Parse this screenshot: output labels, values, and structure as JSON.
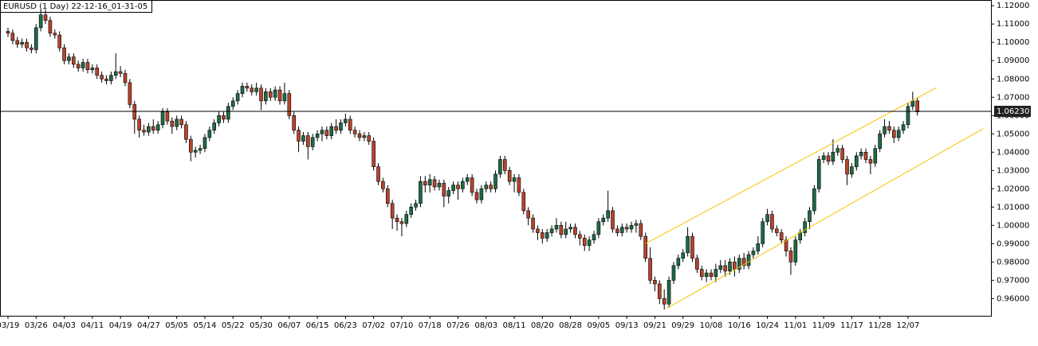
{
  "chart_data": {
    "type": "candlestick",
    "title": "EURUSD (1 Day) 22-12-16_01-31-05",
    "categories": [
      "03/19",
      null,
      null,
      null,
      null,
      null,
      "03/26",
      null,
      null,
      null,
      null,
      null,
      "04/03",
      null,
      null,
      null,
      null,
      null,
      "04/11",
      null,
      null,
      null,
      null,
      null,
      "04/19",
      null,
      null,
      null,
      null,
      null,
      "04/27",
      null,
      null,
      null,
      null,
      null,
      "05/05",
      null,
      null,
      null,
      null,
      null,
      "05/14",
      null,
      null,
      null,
      null,
      null,
      "05/22",
      null,
      null,
      null,
      null,
      null,
      "05/30",
      null,
      null,
      null,
      null,
      null,
      "06/07",
      null,
      null,
      null,
      null,
      null,
      "06/15",
      null,
      null,
      null,
      null,
      null,
      "06/23",
      null,
      null,
      null,
      null,
      null,
      "07/02",
      null,
      null,
      null,
      null,
      null,
      "07/10",
      null,
      null,
      null,
      null,
      null,
      "07/18",
      null,
      null,
      null,
      null,
      null,
      "07/26",
      null,
      null,
      null,
      null,
      null,
      "08/03",
      null,
      null,
      null,
      null,
      null,
      "08/11",
      null,
      null,
      null,
      null,
      null,
      "08/20",
      null,
      null,
      null,
      null,
      null,
      "08/28",
      null,
      null,
      null,
      null,
      null,
      "09/05",
      null,
      null,
      null,
      null,
      null,
      "09/13",
      null,
      null,
      null,
      null,
      null,
      "09/21",
      null,
      null,
      null,
      null,
      null,
      "09/29",
      null,
      null,
      null,
      null,
      null,
      "10/08",
      null,
      null,
      null,
      null,
      null,
      "10/16",
      null,
      null,
      null,
      null,
      null,
      "10/24",
      null,
      null,
      null,
      null,
      null,
      "11/01",
      null,
      null,
      null,
      null,
      null,
      "11/09",
      null,
      null,
      null,
      null,
      null,
      "11/17",
      null,
      null,
      null,
      null,
      null,
      "11/28",
      null,
      null,
      null,
      null,
      null,
      "12/07",
      null,
      null
    ],
    "ohlc": [
      [
        1.106,
        1.108,
        1.103,
        1.105
      ],
      [
        1.105,
        1.107,
        1.099,
        1.101
      ],
      [
        1.101,
        1.103,
        1.097,
        1.099
      ],
      [
        1.099,
        1.102,
        1.097,
        1.1
      ],
      [
        1.1,
        1.102,
        1.095,
        1.097
      ],
      [
        1.097,
        1.099,
        1.094,
        1.096
      ],
      [
        1.096,
        1.11,
        1.094,
        1.108
      ],
      [
        1.108,
        1.118,
        1.106,
        1.115
      ],
      [
        1.115,
        1.118,
        1.11,
        1.112
      ],
      [
        1.112,
        1.114,
        1.103,
        1.105
      ],
      [
        1.105,
        1.107,
        1.102,
        1.104
      ],
      [
        1.104,
        1.106,
        1.095,
        1.097
      ],
      [
        1.097,
        1.099,
        1.088,
        1.09
      ],
      [
        1.09,
        1.094,
        1.088,
        1.092
      ],
      [
        1.092,
        1.094,
        1.086,
        1.088
      ],
      [
        1.088,
        1.09,
        1.084,
        1.086
      ],
      [
        1.086,
        1.091,
        1.084,
        1.089
      ],
      [
        1.089,
        1.091,
        1.083,
        1.085
      ],
      [
        1.085,
        1.088,
        1.083,
        1.086
      ],
      [
        1.086,
        1.088,
        1.08,
        1.082
      ],
      [
        1.082,
        1.084,
        1.078,
        1.08
      ],
      [
        1.08,
        1.082,
        1.077,
        1.079
      ],
      [
        1.079,
        1.084,
        1.077,
        1.082
      ],
      [
        1.082,
        1.094,
        1.08,
        1.084
      ],
      [
        1.084,
        1.087,
        1.081,
        1.083
      ],
      [
        1.083,
        1.085,
        1.076,
        1.078
      ],
      [
        1.078,
        1.08,
        1.064,
        1.066
      ],
      [
        1.066,
        1.068,
        1.05,
        1.058
      ],
      [
        1.058,
        1.06,
        1.048,
        1.052
      ],
      [
        1.052,
        1.055,
        1.049,
        1.051
      ],
      [
        1.051,
        1.056,
        1.049,
        1.054
      ],
      [
        1.054,
        1.058,
        1.05,
        1.052
      ],
      [
        1.052,
        1.057,
        1.05,
        1.055
      ],
      [
        1.055,
        1.064,
        1.053,
        1.062
      ],
      [
        1.062,
        1.064,
        1.055,
        1.057
      ],
      [
        1.057,
        1.059,
        1.05,
        1.054
      ],
      [
        1.054,
        1.06,
        1.052,
        1.058
      ],
      [
        1.058,
        1.06,
        1.053,
        1.055
      ],
      [
        1.055,
        1.057,
        1.045,
        1.047
      ],
      [
        1.047,
        1.049,
        1.035,
        1.04
      ],
      [
        1.04,
        1.043,
        1.037,
        1.041
      ],
      [
        1.041,
        1.044,
        1.039,
        1.042
      ],
      [
        1.042,
        1.05,
        1.04,
        1.048
      ],
      [
        1.048,
        1.054,
        1.046,
        1.052
      ],
      [
        1.052,
        1.058,
        1.05,
        1.056
      ],
      [
        1.056,
        1.062,
        1.054,
        1.06
      ],
      [
        1.06,
        1.062,
        1.056,
        1.058
      ],
      [
        1.058,
        1.067,
        1.056,
        1.065
      ],
      [
        1.065,
        1.07,
        1.063,
        1.068
      ],
      [
        1.068,
        1.074,
        1.066,
        1.072
      ],
      [
        1.072,
        1.078,
        1.07,
        1.076
      ],
      [
        1.076,
        1.078,
        1.073,
        1.075
      ],
      [
        1.075,
        1.077,
        1.071,
        1.073
      ],
      [
        1.073,
        1.078,
        1.071,
        1.075
      ],
      [
        1.075,
        1.077,
        1.063,
        1.068
      ],
      [
        1.068,
        1.075,
        1.066,
        1.073
      ],
      [
        1.073,
        1.075,
        1.068,
        1.07
      ],
      [
        1.07,
        1.076,
        1.068,
        1.074
      ],
      [
        1.074,
        1.076,
        1.066,
        1.068
      ],
      [
        1.068,
        1.078,
        1.066,
        1.072
      ],
      [
        1.072,
        1.074,
        1.058,
        1.06
      ],
      [
        1.06,
        1.062,
        1.05,
        1.052
      ],
      [
        1.052,
        1.054,
        1.04,
        1.046
      ],
      [
        1.046,
        1.051,
        1.044,
        1.049
      ],
      [
        1.049,
        1.051,
        1.036,
        1.043
      ],
      [
        1.043,
        1.05,
        1.041,
        1.048
      ],
      [
        1.048,
        1.052,
        1.046,
        1.05
      ],
      [
        1.05,
        1.054,
        1.046,
        1.052
      ],
      [
        1.052,
        1.054,
        1.047,
        1.049
      ],
      [
        1.049,
        1.056,
        1.047,
        1.054
      ],
      [
        1.054,
        1.058,
        1.05,
        1.052
      ],
      [
        1.052,
        1.058,
        1.05,
        1.056
      ],
      [
        1.056,
        1.061,
        1.054,
        1.058
      ],
      [
        1.058,
        1.06,
        1.05,
        1.052
      ],
      [
        1.052,
        1.054,
        1.048,
        1.05
      ],
      [
        1.05,
        1.052,
        1.046,
        1.048
      ],
      [
        1.048,
        1.051,
        1.046,
        1.049
      ],
      [
        1.049,
        1.051,
        1.044,
        1.046
      ],
      [
        1.046,
        1.048,
        1.03,
        1.032
      ],
      [
        1.032,
        1.034,
        1.022,
        1.024
      ],
      [
        1.024,
        1.026,
        1.018,
        1.02
      ],
      [
        1.02,
        1.022,
        1.01,
        1.012
      ],
      [
        1.012,
        1.014,
        0.998,
        1.004
      ],
      [
        1.004,
        1.006,
        0.997,
        1.002
      ],
      [
        1.002,
        1.004,
        0.994,
        1.001
      ],
      [
        1.001,
        1.008,
        0.999,
        1.006
      ],
      [
        1.006,
        1.012,
        1.004,
        1.01
      ],
      [
        1.01,
        1.014,
        1.008,
        1.012
      ],
      [
        1.012,
        1.027,
        1.01,
        1.024
      ],
      [
        1.024,
        1.027,
        1.018,
        1.022
      ],
      [
        1.022,
        1.028,
        1.018,
        1.025
      ],
      [
        1.025,
        1.027,
        1.019,
        1.021
      ],
      [
        1.021,
        1.025,
        1.019,
        1.023
      ],
      [
        1.023,
        1.025,
        1.01,
        1.016
      ],
      [
        1.016,
        1.021,
        1.012,
        1.019
      ],
      [
        1.019,
        1.024,
        1.017,
        1.022
      ],
      [
        1.022,
        1.024,
        1.014,
        1.02
      ],
      [
        1.02,
        1.026,
        1.018,
        1.024
      ],
      [
        1.024,
        1.028,
        1.022,
        1.026
      ],
      [
        1.026,
        1.028,
        1.016,
        1.018
      ],
      [
        1.018,
        1.02,
        1.012,
        1.014
      ],
      [
        1.014,
        1.022,
        1.012,
        1.02
      ],
      [
        1.02,
        1.024,
        1.018,
        1.022
      ],
      [
        1.022,
        1.024,
        1.018,
        1.02
      ],
      [
        1.02,
        1.03,
        1.018,
        1.028
      ],
      [
        1.028,
        1.038,
        1.026,
        1.036
      ],
      [
        1.036,
        1.038,
        1.028,
        1.03
      ],
      [
        1.03,
        1.032,
        1.022,
        1.024
      ],
      [
        1.024,
        1.028,
        1.018,
        1.026
      ],
      [
        1.026,
        1.028,
        1.016,
        1.018
      ],
      [
        1.018,
        1.02,
        1.006,
        1.008
      ],
      [
        1.008,
        1.01,
        1.0,
        1.004
      ],
      [
        1.004,
        1.006,
        0.996,
        0.998
      ],
      [
        0.998,
        1.0,
        0.992,
        0.996
      ],
      [
        0.996,
        0.998,
        0.99,
        0.993
      ],
      [
        0.993,
        0.998,
        0.991,
        0.996
      ],
      [
        0.996,
        1.0,
        0.994,
        0.998
      ],
      [
        0.998,
        1.004,
        0.996,
        1.0
      ],
      [
        1.0,
        1.002,
        0.993,
        0.995
      ],
      [
        0.995,
        1.002,
        0.993,
        0.998
      ],
      [
        0.998,
        1.001,
        0.996,
        0.999
      ],
      [
        0.999,
        1.001,
        0.993,
        0.995
      ],
      [
        0.995,
        0.997,
        0.989,
        0.993
      ],
      [
        0.993,
        0.995,
        0.986,
        0.989
      ],
      [
        0.989,
        0.994,
        0.986,
        0.992
      ],
      [
        0.992,
        0.997,
        0.99,
        0.995
      ],
      [
        0.995,
        1.004,
        0.993,
        1.002
      ],
      [
        1.002,
        1.006,
        1.0,
        1.004
      ],
      [
        1.004,
        1.019,
        1.002,
        1.008
      ],
      [
        1.008,
        1.01,
        0.996,
        0.998
      ],
      [
        0.998,
        1.0,
        0.994,
        0.996
      ],
      [
        0.996,
        1.001,
        0.994,
        0.999
      ],
      [
        0.999,
        1.001,
        0.996,
        0.998
      ],
      [
        0.998,
        1.002,
        0.996,
        1.0
      ],
      [
        1.0,
        1.003,
        0.996,
        1.001
      ],
      [
        1.001,
        1.003,
        0.992,
        0.994
      ],
      [
        0.994,
        0.996,
        0.98,
        0.982
      ],
      [
        0.982,
        0.988,
        0.968,
        0.97
      ],
      [
        0.97,
        0.972,
        0.964,
        0.968
      ],
      [
        0.968,
        0.97,
        0.957,
        0.96
      ],
      [
        0.96,
        0.965,
        0.954,
        0.957
      ],
      [
        0.957,
        0.972,
        0.955,
        0.97
      ],
      [
        0.97,
        0.98,
        0.968,
        0.978
      ],
      [
        0.978,
        0.984,
        0.976,
        0.982
      ],
      [
        0.982,
        0.987,
        0.98,
        0.985
      ],
      [
        0.985,
        0.999,
        0.983,
        0.994
      ],
      [
        0.994,
        0.996,
        0.98,
        0.982
      ],
      [
        0.982,
        0.984,
        0.974,
        0.976
      ],
      [
        0.976,
        0.978,
        0.97,
        0.972
      ],
      [
        0.972,
        0.976,
        0.969,
        0.974
      ],
      [
        0.974,
        0.976,
        0.97,
        0.972
      ],
      [
        0.972,
        0.979,
        0.969,
        0.976
      ],
      [
        0.976,
        0.981,
        0.974,
        0.978
      ],
      [
        0.978,
        0.981,
        0.972,
        0.975
      ],
      [
        0.975,
        0.982,
        0.973,
        0.98
      ],
      [
        0.98,
        0.983,
        0.972,
        0.976
      ],
      [
        0.976,
        0.984,
        0.974,
        0.982
      ],
      [
        0.982,
        0.985,
        0.976,
        0.978
      ],
      [
        0.978,
        0.986,
        0.976,
        0.984
      ],
      [
        0.984,
        0.988,
        0.982,
        0.986
      ],
      [
        0.986,
        0.994,
        0.984,
        0.99
      ],
      [
        0.99,
        1.004,
        0.988,
        1.002
      ],
      [
        1.002,
        1.009,
        1.0,
        1.006
      ],
      [
        1.006,
        1.008,
        0.996,
        0.998
      ],
      [
        0.998,
        1.0,
        0.994,
        0.996
      ],
      [
        0.996,
        0.998,
        0.99,
        0.992
      ],
      [
        0.992,
        0.994,
        0.983,
        0.986
      ],
      [
        0.986,
        0.988,
        0.973,
        0.98
      ],
      [
        0.98,
        0.994,
        0.978,
        0.992
      ],
      [
        0.992,
        0.998,
        0.99,
        0.996
      ],
      [
        0.996,
        1.004,
        0.994,
        1.002
      ],
      [
        1.002,
        1.01,
        0.998,
        1.008
      ],
      [
        1.008,
        1.022,
        1.006,
        1.02
      ],
      [
        1.02,
        1.038,
        1.018,
        1.036
      ],
      [
        1.036,
        1.04,
        1.034,
        1.038
      ],
      [
        1.038,
        1.04,
        1.033,
        1.035
      ],
      [
        1.035,
        1.047,
        1.033,
        1.04
      ],
      [
        1.04,
        1.044,
        1.038,
        1.042
      ],
      [
        1.042,
        1.044,
        1.034,
        1.036
      ],
      [
        1.036,
        1.038,
        1.022,
        1.028
      ],
      [
        1.028,
        1.034,
        1.026,
        1.032
      ],
      [
        1.032,
        1.04,
        1.03,
        1.038
      ],
      [
        1.038,
        1.042,
        1.036,
        1.04
      ],
      [
        1.04,
        1.042,
        1.034,
        1.036
      ],
      [
        1.036,
        1.038,
        1.028,
        1.034
      ],
      [
        1.034,
        1.044,
        1.032,
        1.042
      ],
      [
        1.042,
        1.052,
        1.04,
        1.05
      ],
      [
        1.05,
        1.058,
        1.048,
        1.054
      ],
      [
        1.054,
        1.057,
        1.05,
        1.052
      ],
      [
        1.052,
        1.054,
        1.045,
        1.048
      ],
      [
        1.048,
        1.054,
        1.046,
        1.052
      ],
      [
        1.052,
        1.057,
        1.05,
        1.055
      ],
      [
        1.055,
        1.067,
        1.053,
        1.065
      ],
      [
        1.065,
        1.073,
        1.063,
        1.068
      ],
      [
        1.068,
        1.07,
        1.06,
        1.062
      ]
    ],
    "up_color": "#1f6b45",
    "down_color": "#b8432c",
    "ylim": [
      0.9506,
      1.1227
    ],
    "yticks": [
      {
        "value": 0.96,
        "label": "0.96000"
      },
      {
        "value": 0.97,
        "label": "0.97000"
      },
      {
        "value": 0.98,
        "label": "0.98000"
      },
      {
        "value": 0.99,
        "label": "0.99000"
      },
      {
        "value": 1.0,
        "label": "1.00000"
      },
      {
        "value": 1.01,
        "label": "1.01000"
      },
      {
        "value": 1.02,
        "label": "1.02000"
      },
      {
        "value": 1.03,
        "label": "1.03000"
      },
      {
        "value": 1.04,
        "label": "1.04000"
      },
      {
        "value": 1.05,
        "label": "1.05000"
      },
      {
        "value": 1.06,
        "label": "1.06000"
      },
      {
        "value": 1.07,
        "label": "1.07000"
      },
      {
        "value": 1.08,
        "label": "1.08000"
      },
      {
        "value": 1.09,
        "label": "1.09000"
      },
      {
        "value": 1.1,
        "label": "1.10000"
      },
      {
        "value": 1.11,
        "label": "1.11000"
      },
      {
        "value": 1.12,
        "label": "1.12000"
      }
    ],
    "price_line": {
      "value": 1.0623,
      "label": "1.06230"
    },
    "trendlines": [
      {
        "color": "#f5c400",
        "start": [
          136,
          0.99
        ],
        "end": [
          198,
          1.0752
        ]
      },
      {
        "color": "#f5c400",
        "start": [
          140.5,
          0.9546
        ],
        "end": [
          208,
          1.0528
        ]
      }
    ],
    "grid": false
  }
}
